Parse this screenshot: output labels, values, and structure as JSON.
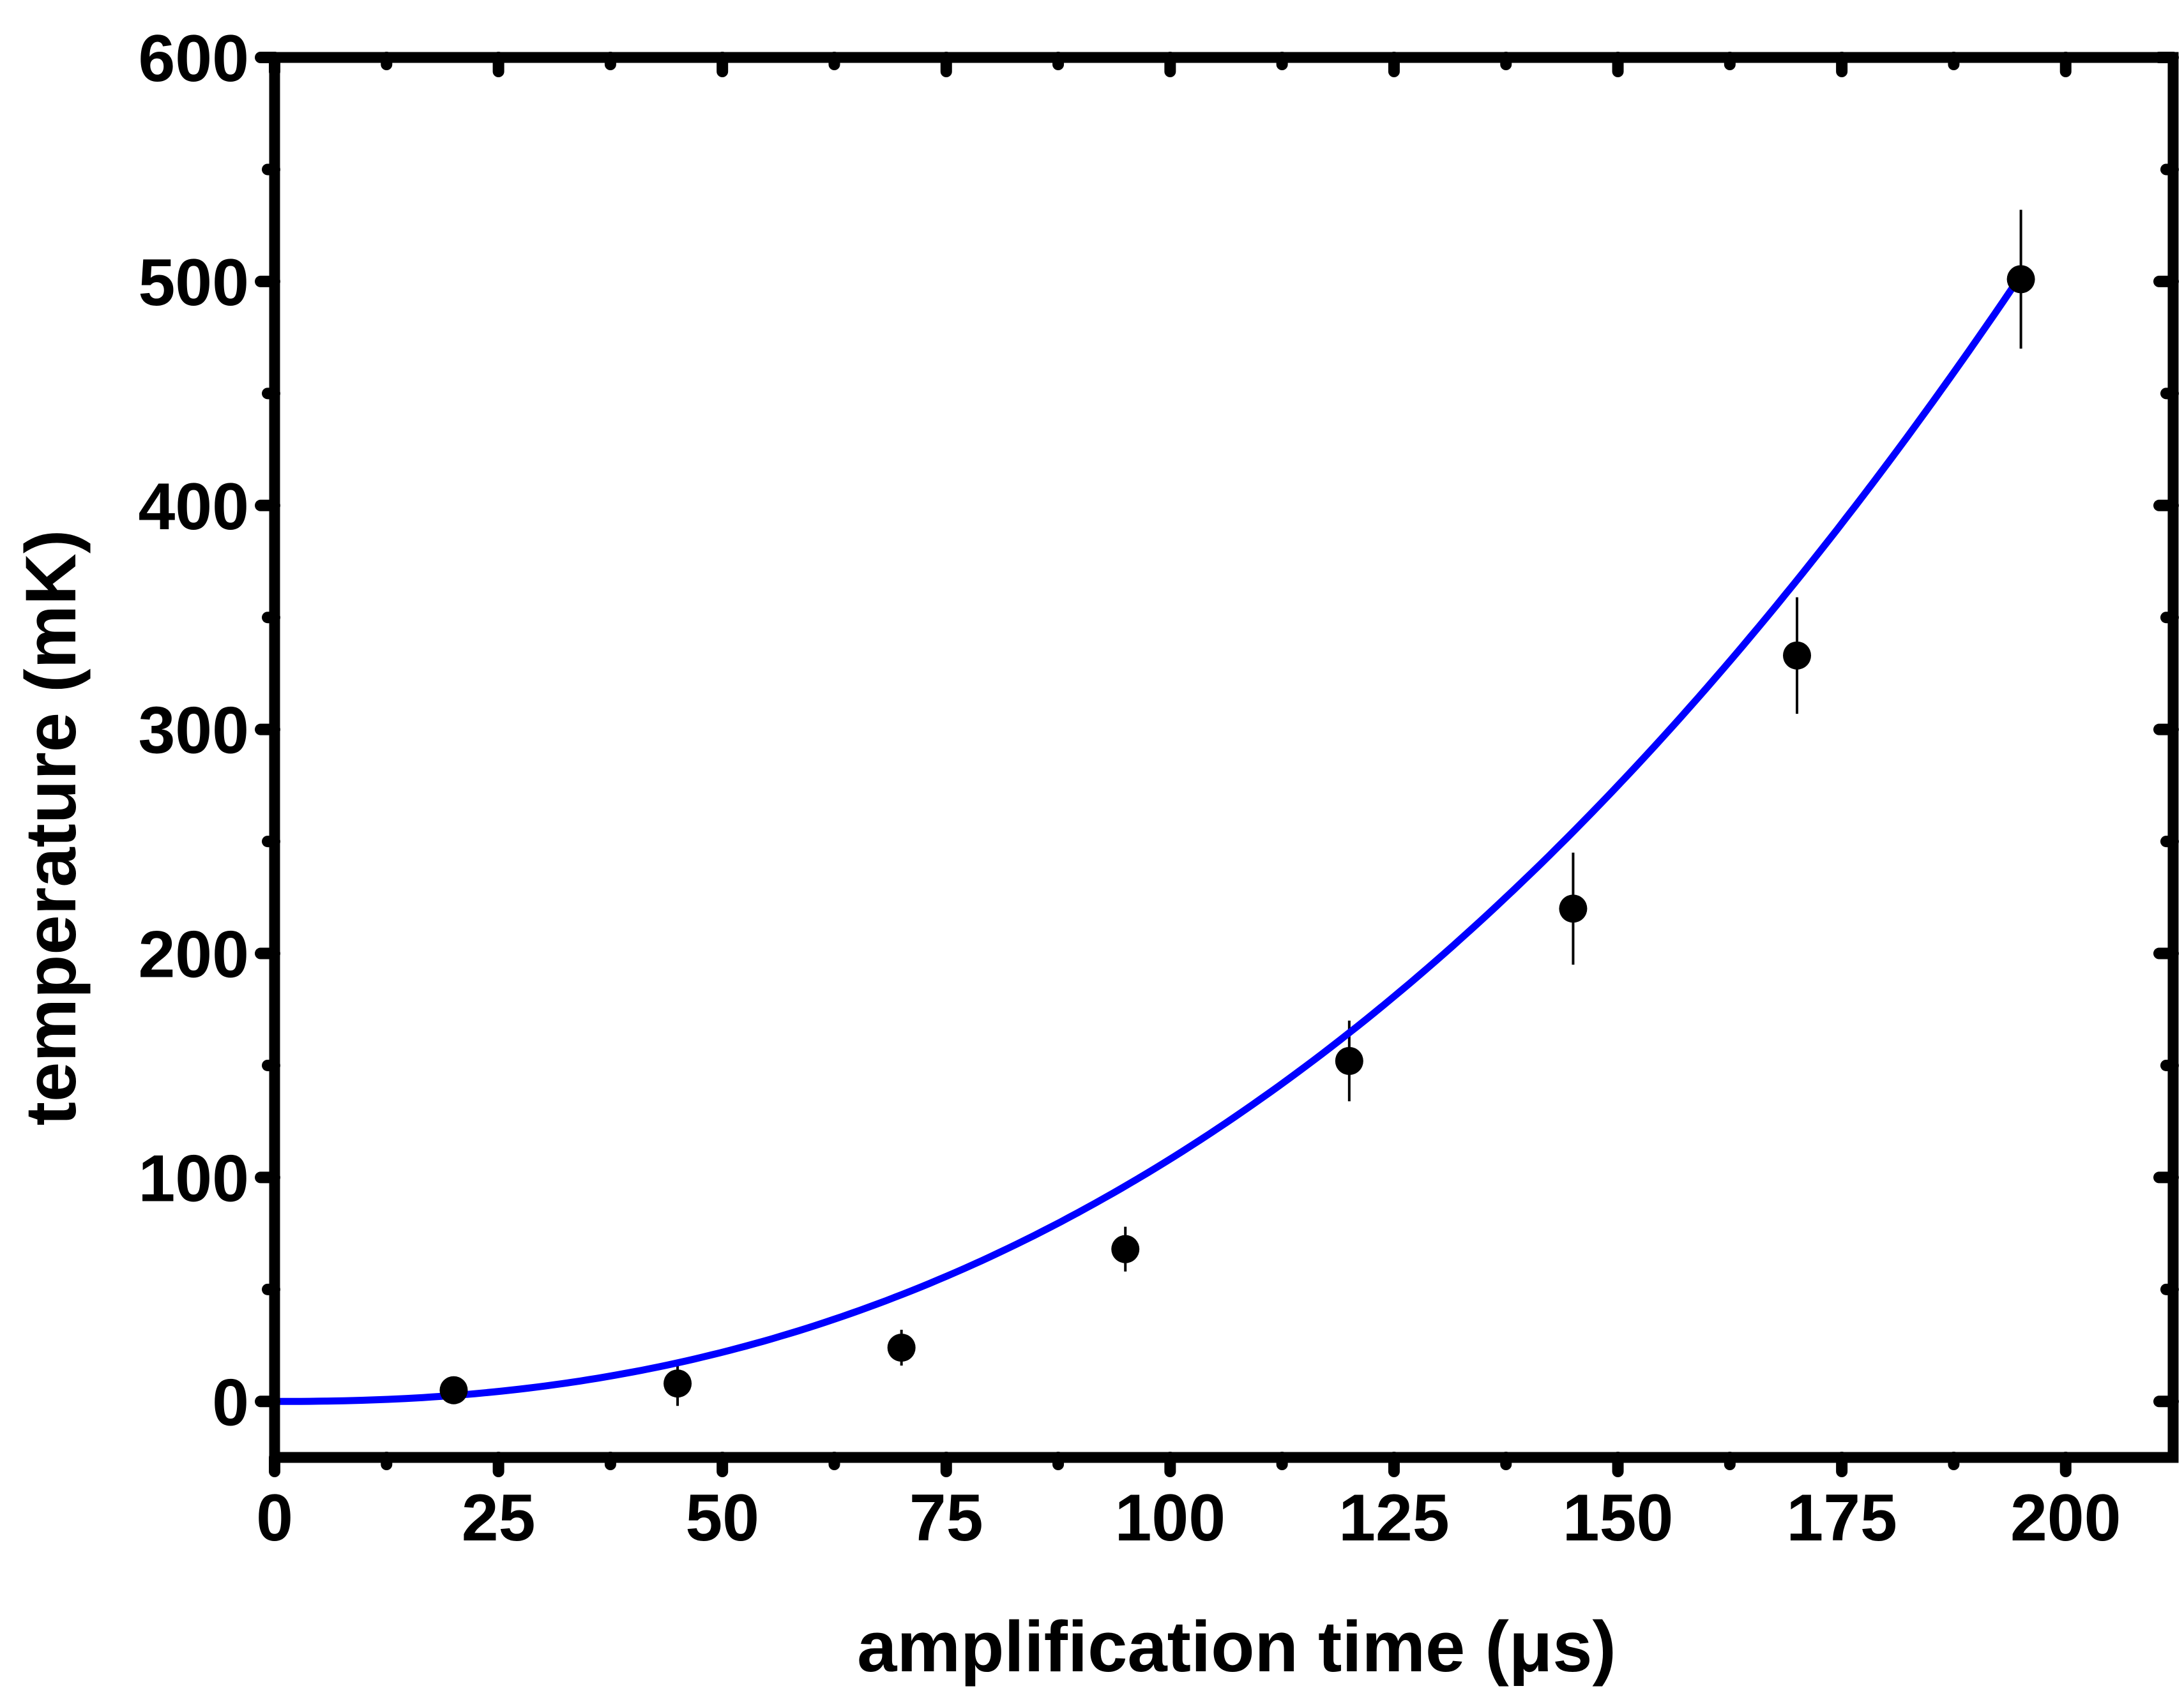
{
  "chart_data": {
    "type": "scatter",
    "title": "",
    "xlabel": "amplification time (μs)",
    "ylabel": "temperature (mK)",
    "xlim": [
      0,
      212
    ],
    "ylim": [
      -25,
      600
    ],
    "xticks": [
      0,
      25,
      50,
      75,
      100,
      125,
      150,
      175,
      200
    ],
    "yticks": [
      0,
      100,
      200,
      300,
      400,
      500,
      600
    ],
    "grid": false,
    "legend": "none",
    "series": [
      {
        "kind": "points-with-error-bars",
        "color": "#000000",
        "points": [
          {
            "x": 20,
            "y": 5,
            "err": 0
          },
          {
            "x": 45,
            "y": 8,
            "err": 10
          },
          {
            "x": 70,
            "y": 24,
            "err": 8
          },
          {
            "x": 95,
            "y": 68,
            "err": 10
          },
          {
            "x": 120,
            "y": 152,
            "err": 18
          },
          {
            "x": 145,
            "y": 220,
            "err": 25
          },
          {
            "x": 170,
            "y": 333,
            "err": 26
          },
          {
            "x": 195,
            "y": 501,
            "err": 31
          }
        ]
      },
      {
        "kind": "fit-curve",
        "color": "#0000FF",
        "model": "y = a * x^2.3",
        "a": 0.002718,
        "x_range": [
          0,
          195
        ]
      }
    ]
  }
}
